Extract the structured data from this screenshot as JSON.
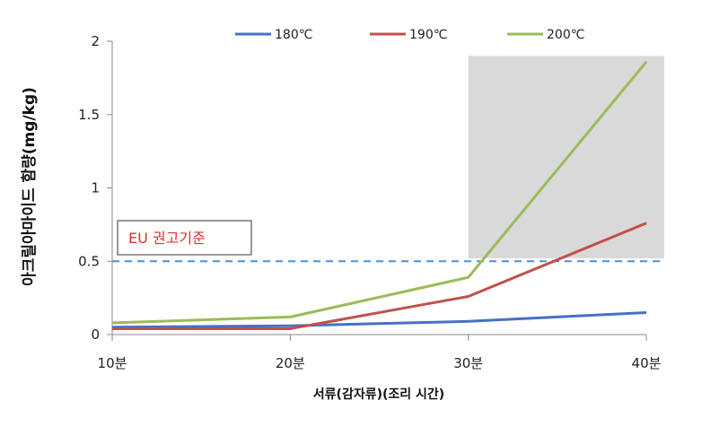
{
  "chart_data": {
    "type": "line",
    "categories": [
      "10분",
      "20분",
      "30분",
      "40분"
    ],
    "xlabel": "서류(감자류)(조리 시간)",
    "ylabel": "아크릴아마이드 함량(mg/kg)",
    "ylim": [
      0,
      2
    ],
    "yticks": [
      "0",
      "0.5",
      "1",
      "1.5",
      "2"
    ],
    "series": [
      {
        "name": "180℃",
        "color": "#4472c4",
        "values": [
          0.05,
          0.06,
          0.09,
          0.15
        ]
      },
      {
        "name": "190℃",
        "color": "#c0504d",
        "values": [
          0.04,
          0.04,
          0.26,
          0.76
        ]
      },
      {
        "name": "200℃",
        "color": "#9bbb59",
        "values": [
          0.08,
          0.12,
          0.39,
          1.86
        ]
      }
    ],
    "reference_line": {
      "value": 0.5,
      "color": "#4f90d9",
      "label": "EU 권고기준",
      "label_color": "#e03030"
    },
    "highlight": {
      "x_from": 30,
      "x_to": 41,
      "y_from": 0.52,
      "y_to": 1.9,
      "color": "#d9d9d9"
    },
    "legend_position": "top",
    "grid": false
  }
}
